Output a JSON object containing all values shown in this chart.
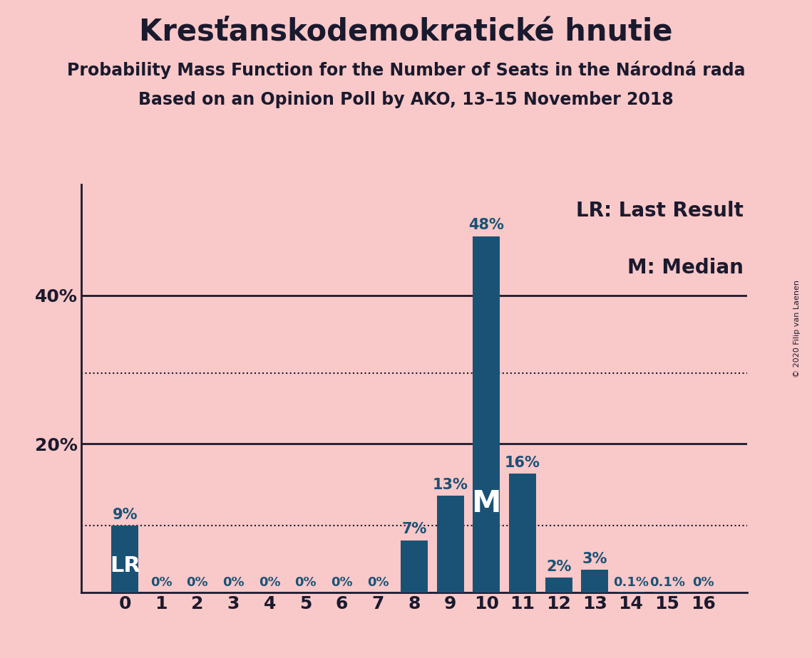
{
  "title": "Kresťanskodemokratické hnutie",
  "subtitle1": "Probability Mass Function for the Number of Seats in the Národná rada",
  "subtitle2": "Based on an Opinion Poll by AKO, 13–15 November 2018",
  "copyright": "© 2020 Filip van Laenen",
  "seats": [
    0,
    1,
    2,
    3,
    4,
    5,
    6,
    7,
    8,
    9,
    10,
    11,
    12,
    13,
    14,
    15,
    16
  ],
  "probabilities": [
    9,
    0,
    0,
    0,
    0,
    0,
    0,
    0,
    7,
    13,
    48,
    16,
    2,
    3,
    0.1,
    0.1,
    0
  ],
  "bar_color": "#1a5276",
  "background_color": "#f9c8c8",
  "text_color": "#1a1a2e",
  "last_result_seat": 0,
  "median_seat": 10,
  "dotted_lines": [
    9,
    29.5
  ],
  "solid_lines": [
    20,
    40
  ],
  "ylim": [
    0,
    55
  ],
  "yticks": [
    20,
    40
  ],
  "ytick_labels": [
    "20%",
    "40%"
  ],
  "legend_text1": "LR: Last Result",
  "legend_text2": "M: Median",
  "title_fontsize": 30,
  "subtitle_fontsize": 17,
  "axis_tick_fontsize": 18,
  "bar_label_fontsize": 15,
  "legend_fontsize": 20,
  "lr_fontsize": 22,
  "m_fontsize": 30,
  "copyright_fontsize": 8
}
